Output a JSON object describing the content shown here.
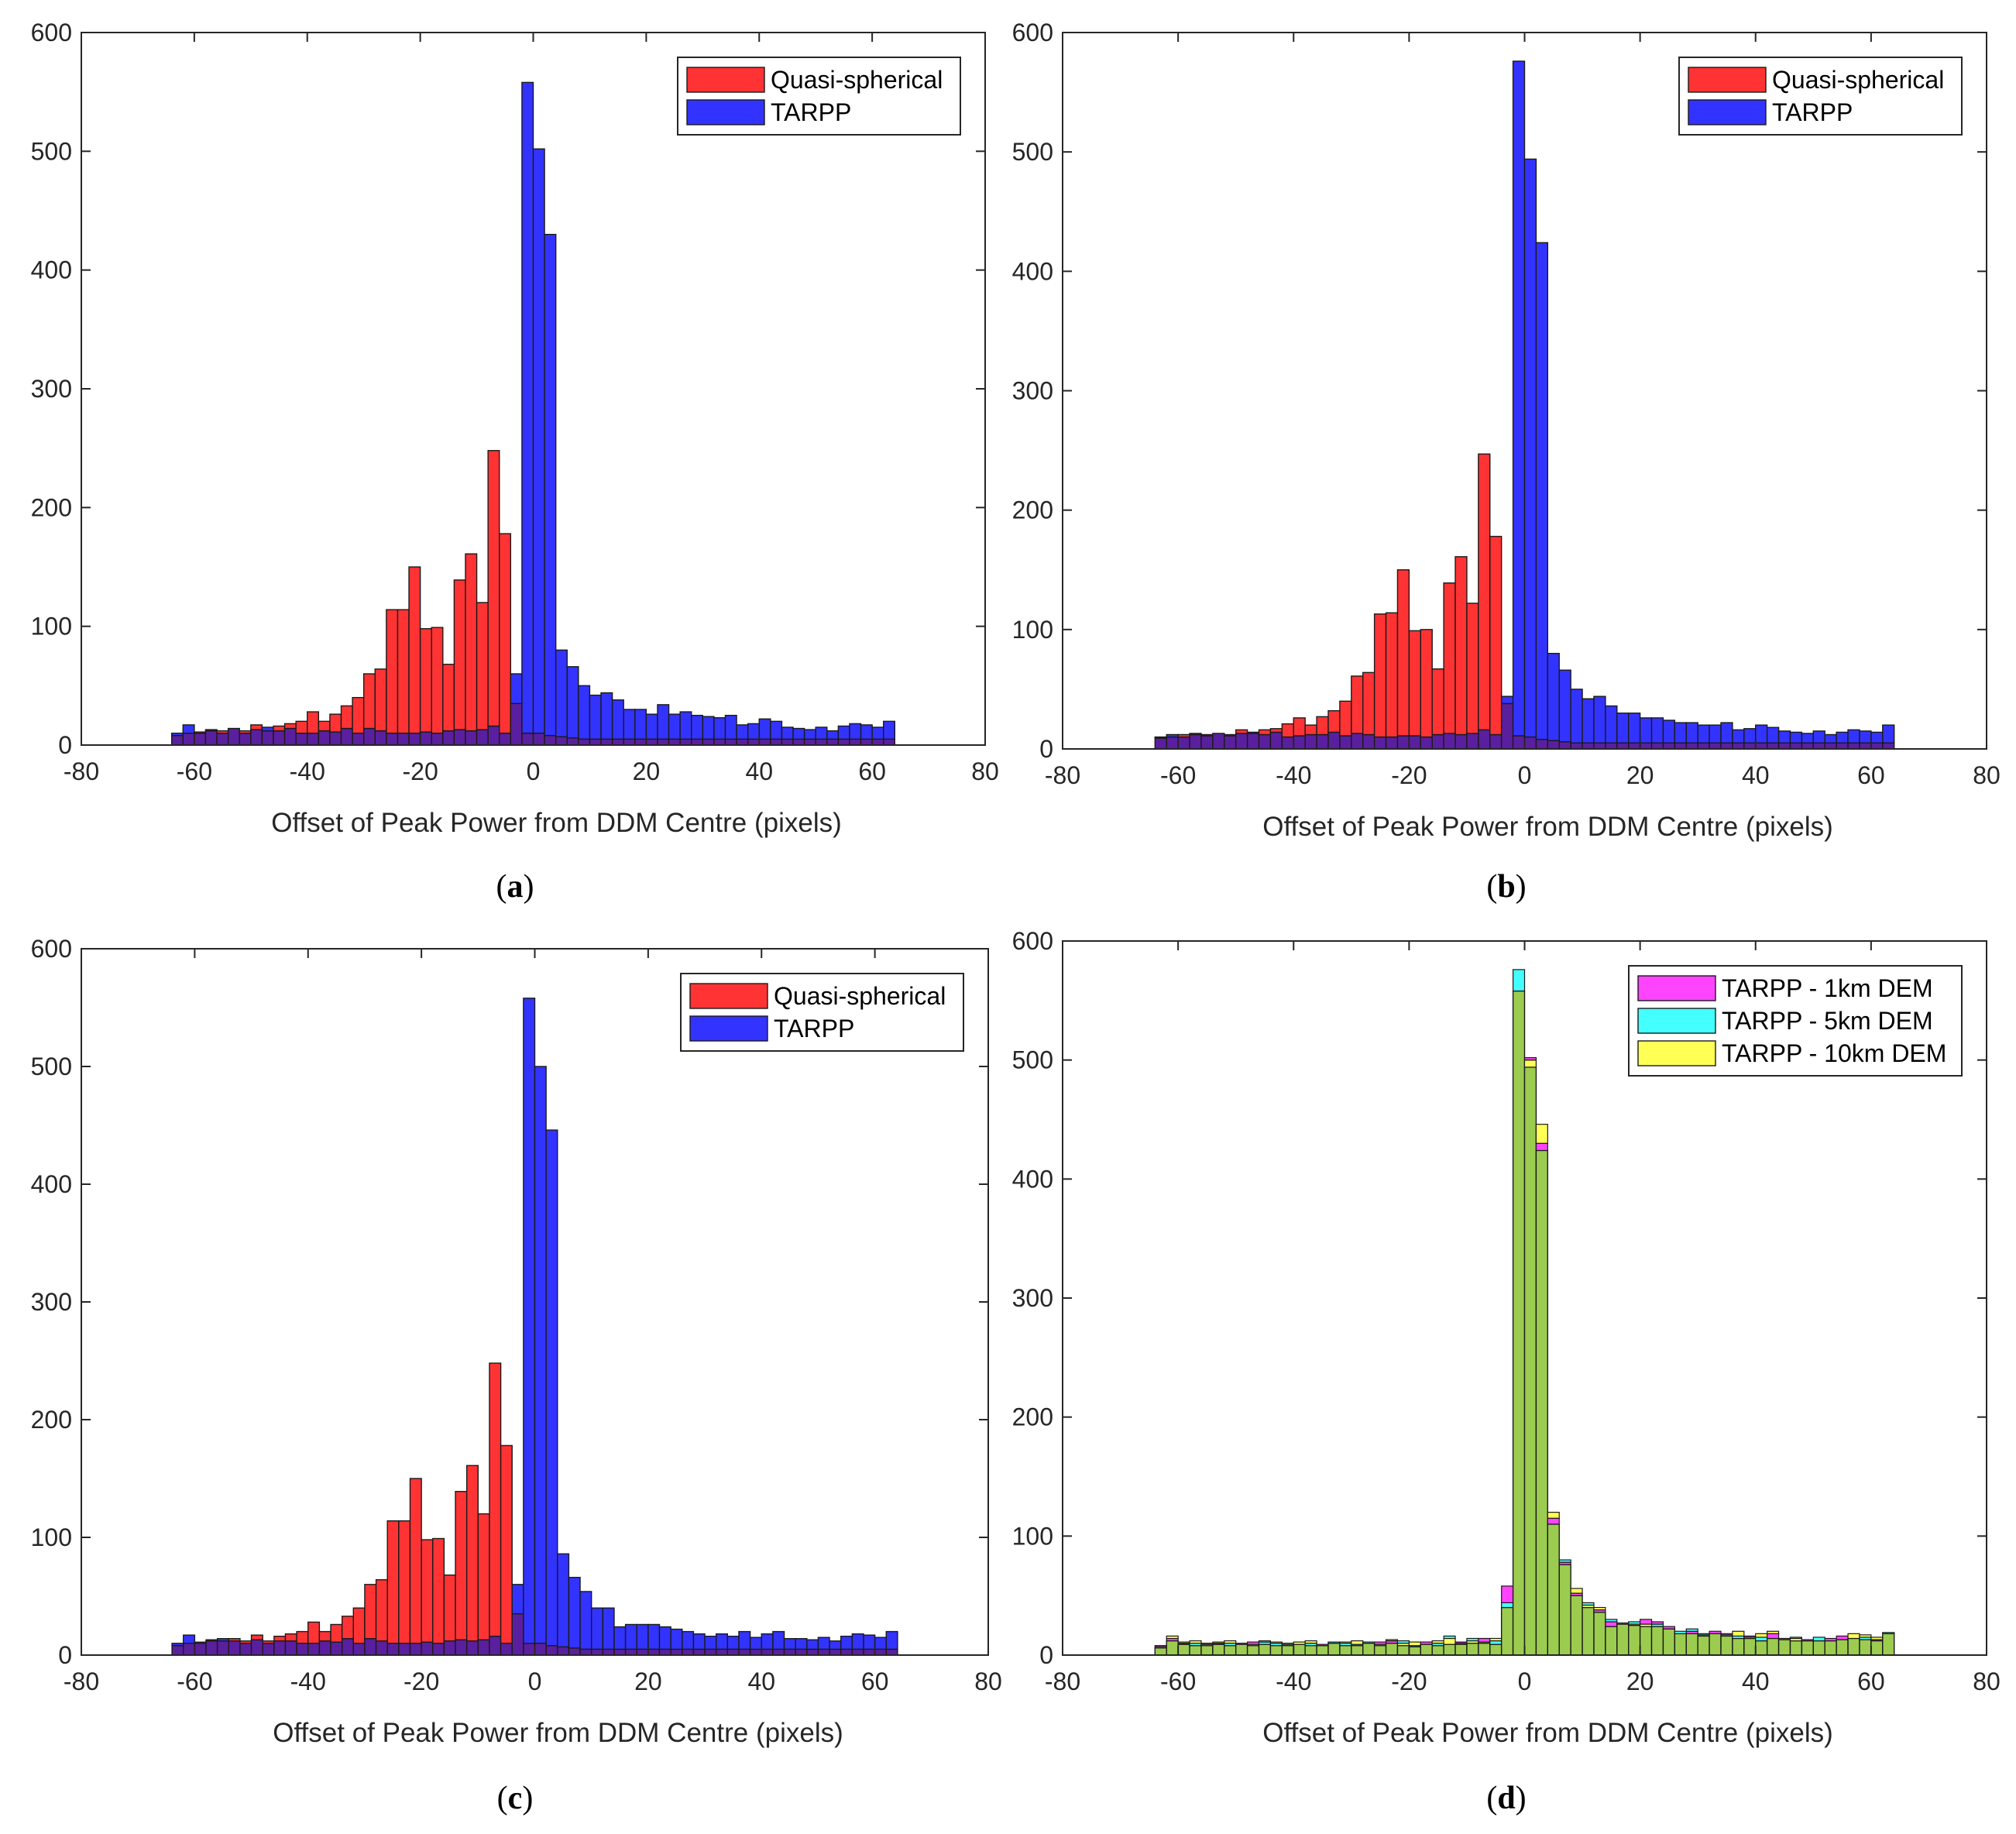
{
  "colors": {
    "quasi": "#ff3333",
    "tarpp": "#3333ff",
    "overlap": "#5a1f9e",
    "dem1": "#ff44ff",
    "dem5": "#44ffff",
    "dem10": "#ffff55",
    "dem_overlap": "#9ccc4f",
    "axis": "#262626",
    "edge": "#1a1a1a"
  },
  "chart_data": [
    {
      "type": "bar",
      "panel": "a",
      "caption": "a",
      "xlabel": "Offset of Peak Power from DDM Centre (pixels)",
      "ylabel": "",
      "xlim": [
        -80,
        80
      ],
      "ylim": [
        0,
        600
      ],
      "xticks": [
        "-80",
        "-60",
        "-40",
        "-20",
        "0",
        "20",
        "40",
        "60",
        "80"
      ],
      "yticks": [
        "0",
        "100",
        "200",
        "300",
        "400",
        "500",
        "600"
      ],
      "legend_position": "top-right",
      "bin_start": -64,
      "bin_width": 2,
      "series": [
        {
          "name": "Quasi-spherical",
          "color_key": "quasi",
          "values": [
            8,
            10,
            11,
            13,
            12,
            14,
            12,
            17,
            12,
            16,
            18,
            20,
            28,
            20,
            26,
            33,
            40,
            60,
            64,
            114,
            114,
            150,
            98,
            99,
            68,
            139,
            161,
            120,
            248,
            178,
            35,
            10,
            10,
            8,
            7,
            6,
            5,
            5,
            5,
            5,
            5,
            5,
            5,
            5,
            5,
            5,
            5,
            5,
            5,
            5,
            5,
            5,
            5,
            5,
            5,
            5,
            5,
            5,
            5,
            5,
            5,
            5,
            5,
            5
          ]
        },
        {
          "name": "TARPP",
          "color_key": "tarpp",
          "values": [
            10,
            17,
            10,
            12,
            10,
            14,
            10,
            13,
            15,
            12,
            14,
            10,
            10,
            12,
            11,
            14,
            10,
            14,
            12,
            10,
            10,
            10,
            11,
            10,
            12,
            13,
            12,
            13,
            16,
            10,
            60,
            558,
            502,
            430,
            80,
            66,
            50,
            42,
            44,
            38,
            30,
            30,
            26,
            34,
            26,
            28,
            25,
            24,
            23,
            25,
            17,
            18,
            22,
            20,
            15,
            14,
            13,
            15,
            12,
            16,
            18,
            17,
            15,
            20
          ]
        }
      ]
    },
    {
      "type": "bar",
      "panel": "b",
      "caption": "b",
      "xlabel": "Offset of Peak Power from DDM Centre (pixels)",
      "ylabel": "",
      "xlim": [
        -80,
        80
      ],
      "ylim": [
        0,
        600
      ],
      "xticks": [
        "-80",
        "-60",
        "-40",
        "-20",
        "0",
        "20",
        "40",
        "60",
        "80"
      ],
      "yticks": [
        "0",
        "100",
        "200",
        "300",
        "400",
        "500",
        "600"
      ],
      "legend_position": "top-right",
      "bin_start": -64,
      "bin_width": 2,
      "series": [
        {
          "name": "Quasi-spherical",
          "color_key": "quasi",
          "values": [
            9,
            10,
            12,
            13,
            12,
            13,
            12,
            16,
            13,
            16,
            17,
            21,
            26,
            20,
            27,
            32,
            40,
            61,
            64,
            113,
            114,
            150,
            99,
            100,
            67,
            139,
            161,
            122,
            247,
            178,
            38,
            11,
            10,
            8,
            7,
            6,
            5,
            5,
            5,
            5,
            5,
            5,
            5,
            5,
            5,
            5,
            5,
            5,
            5,
            5,
            5,
            5,
            5,
            5,
            5,
            5,
            5,
            5,
            5,
            5,
            5,
            5,
            5,
            5
          ]
        },
        {
          "name": "TARPP",
          "color_key": "tarpp",
          "values": [
            10,
            12,
            10,
            12,
            11,
            13,
            11,
            13,
            14,
            12,
            14,
            10,
            11,
            12,
            12,
            14,
            11,
            13,
            12,
            10,
            10,
            11,
            11,
            10,
            12,
            13,
            12,
            13,
            16,
            12,
            44,
            576,
            494,
            424,
            80,
            66,
            50,
            42,
            44,
            36,
            30,
            30,
            26,
            26,
            24,
            22,
            22,
            20,
            20,
            22,
            16,
            17,
            20,
            18,
            15,
            14,
            13,
            15,
            12,
            14,
            16,
            15,
            14,
            20
          ]
        }
      ]
    },
    {
      "type": "bar",
      "panel": "c",
      "caption": "c",
      "xlabel": "Offset of Peak Power from DDM Centre (pixels)",
      "ylabel": "",
      "xlim": [
        -80,
        80
      ],
      "ylim": [
        0,
        600
      ],
      "xticks": [
        "-80",
        "-60",
        "-40",
        "-20",
        "0",
        "20",
        "40",
        "60",
        "80"
      ],
      "yticks": [
        "0",
        "100",
        "200",
        "300",
        "400",
        "500",
        "600"
      ],
      "legend_position": "top-right",
      "bin_start": -64,
      "bin_width": 2,
      "series": [
        {
          "name": "Quasi-spherical",
          "color_key": "quasi",
          "values": [
            8,
            10,
            11,
            13,
            12,
            14,
            12,
            17,
            12,
            16,
            18,
            20,
            28,
            20,
            26,
            33,
            40,
            60,
            64,
            114,
            114,
            150,
            98,
            99,
            68,
            139,
            161,
            120,
            248,
            178,
            35,
            10,
            10,
            8,
            7,
            6,
            5,
            5,
            5,
            5,
            5,
            5,
            5,
            5,
            5,
            5,
            5,
            5,
            5,
            5,
            5,
            5,
            5,
            5,
            5,
            5,
            5,
            5,
            5,
            5,
            5,
            5,
            5,
            5
          ]
        },
        {
          "name": "TARPP",
          "color_key": "tarpp",
          "values": [
            10,
            17,
            10,
            12,
            14,
            12,
            10,
            13,
            10,
            12,
            12,
            10,
            10,
            12,
            11,
            14,
            10,
            14,
            12,
            10,
            10,
            10,
            11,
            10,
            12,
            13,
            12,
            13,
            16,
            10,
            60,
            558,
            500,
            446,
            86,
            66,
            54,
            40,
            40,
            24,
            26,
            26,
            26,
            24,
            22,
            20,
            18,
            16,
            18,
            16,
            20,
            15,
            18,
            20,
            14,
            14,
            13,
            15,
            12,
            16,
            18,
            17,
            15,
            20
          ]
        }
      ]
    },
    {
      "type": "bar",
      "panel": "d",
      "caption": "d",
      "xlabel": "Offset of Peak Power from DDM Centre (pixels)",
      "ylabel": "",
      "xlim": [
        -80,
        80
      ],
      "ylim": [
        0,
        600
      ],
      "xticks": [
        "-80",
        "-60",
        "-40",
        "-20",
        "0",
        "20",
        "40",
        "60",
        "80"
      ],
      "yticks": [
        "0",
        "100",
        "200",
        "300",
        "400",
        "500",
        "600"
      ],
      "legend_position": "top-right",
      "bin_start": -64,
      "bin_width": 2,
      "series": [
        {
          "name": "TARPP - 1km DEM",
          "color_key": "dem1",
          "values": [
            8,
            14,
            10,
            8,
            10,
            10,
            8,
            10,
            11,
            9,
            8,
            8,
            9,
            8,
            9,
            10,
            8,
            8,
            10,
            11,
            12,
            8,
            7,
            11,
            8,
            9,
            11,
            10,
            14,
            9,
            58,
            558,
            502,
            430,
            115,
            78,
            52,
            40,
            38,
            28,
            27,
            25,
            30,
            28,
            24,
            18,
            20,
            17,
            20,
            18,
            14,
            16,
            12,
            18,
            14,
            12,
            13,
            12,
            14,
            16,
            14,
            13,
            13,
            18
          ]
        },
        {
          "name": "TARPP - 5km DEM",
          "color_key": "dem5",
          "values": [
            6,
            12,
            9,
            10,
            8,
            9,
            10,
            9,
            8,
            11,
            10,
            9,
            9,
            10,
            8,
            11,
            10,
            9,
            11,
            8,
            10,
            12,
            8,
            9,
            10,
            16,
            9,
            14,
            10,
            12,
            44,
            576,
            494,
            424,
            110,
            80,
            50,
            44,
            36,
            30,
            26,
            28,
            24,
            26,
            22,
            20,
            22,
            18,
            20,
            17,
            16,
            14,
            15,
            14,
            13,
            15,
            12,
            15,
            14,
            13,
            14,
            15,
            12,
            19
          ]
        },
        {
          "name": "TARPP - 10km DEM",
          "color_key": "dem10",
          "values": [
            7,
            16,
            11,
            12,
            9,
            11,
            12,
            10,
            9,
            12,
            11,
            10,
            11,
            12,
            9,
            10,
            11,
            12,
            10,
            9,
            13,
            10,
            11,
            9,
            12,
            14,
            10,
            12,
            11,
            14,
            40,
            558,
            500,
            446,
            120,
            76,
            56,
            42,
            40,
            24,
            26,
            26,
            26,
            24,
            22,
            20,
            18,
            16,
            18,
            16,
            20,
            15,
            18,
            20,
            14,
            14,
            13,
            15,
            12,
            16,
            18,
            17,
            15,
            19
          ]
        }
      ]
    }
  ]
}
